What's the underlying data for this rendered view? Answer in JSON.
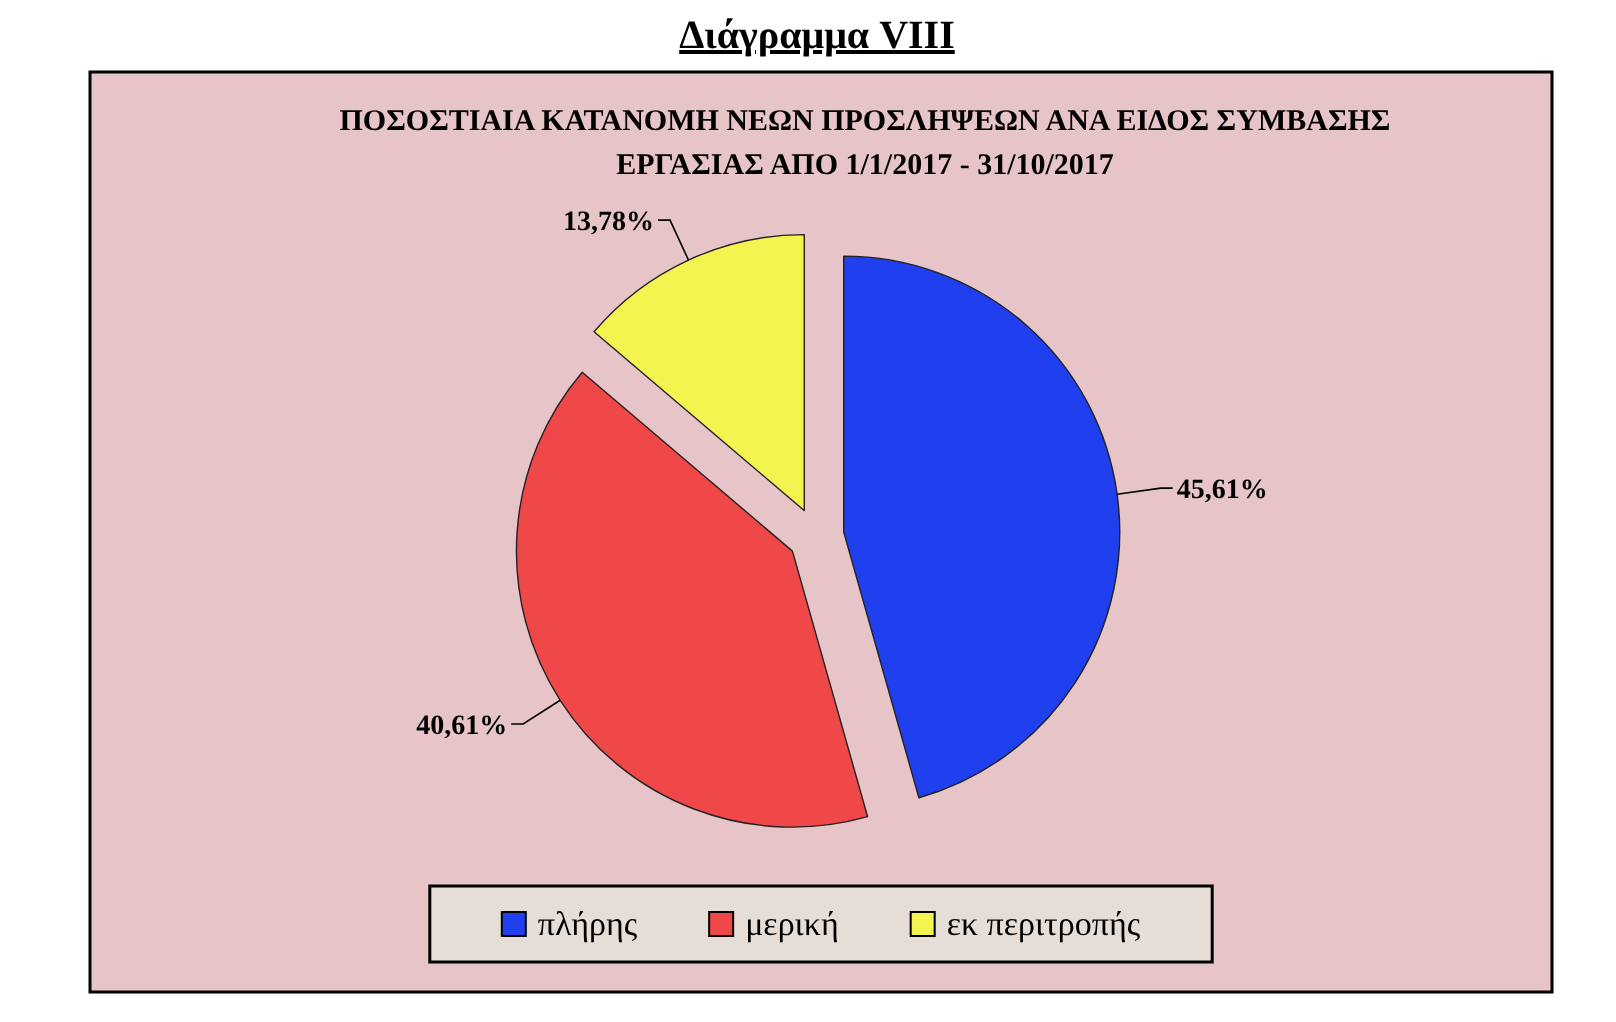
{
  "chart_data": {
    "type": "pie",
    "title": "Διάγραμμα VIII",
    "subtitle": "ΠΟΣΟΣΤΙΑΙΑ ΚΑΤΑΝΟΜΗ ΝΕΩΝ ΠΡΟΣΛΗΨΕΩΝ ΑΝΑ ΕΙΔΟΣ ΣΥΜΒΑΣΗΣ ΕΡΓΑΣΙΑΣ ΑΠΟ 1/1/2017 - 31/10/2017",
    "categories": [
      "πλήρης",
      "μερική",
      "εκ περιτροπής"
    ],
    "values": [
      45.61,
      40.61,
      13.78
    ],
    "value_labels": [
      "45,61%",
      "40,61%",
      "13,78%"
    ],
    "colors": [
      "#2040f0",
      "#f04848",
      "#f4f450"
    ],
    "legend": "bottom"
  }
}
